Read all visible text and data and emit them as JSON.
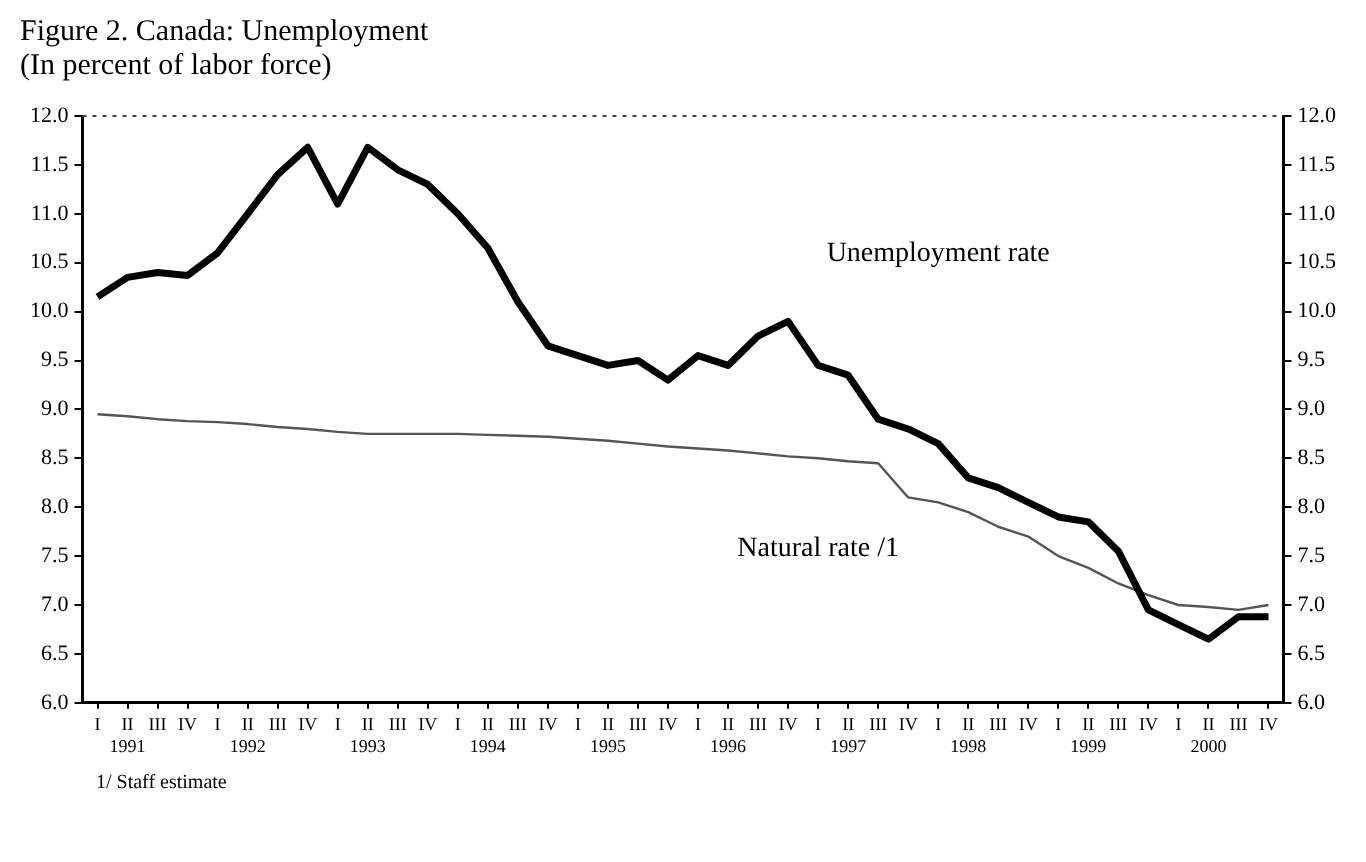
{
  "chart_data": {
    "type": "line",
    "title": "Figure 2. Canada: Unemployment",
    "subtitle": "(In percent of labor force)",
    "categories": [
      "I",
      "II\n1991",
      "III",
      "IV",
      "I",
      "II\n1992",
      "III",
      "IV",
      "I",
      "II\n1993",
      "III",
      "IV",
      "I",
      "II\n1994",
      "III",
      "IV",
      "I",
      "II\n1995",
      "III",
      "IV",
      "I",
      "II\n1996",
      "III",
      "IV",
      "I",
      "II\n1997",
      "III",
      "IV",
      "I",
      "II\n1998",
      "III",
      "IV",
      "I",
      "II\n1999",
      "III",
      "IV",
      "I",
      "II\n2000",
      "III",
      "IV"
    ],
    "series": [
      {
        "name": "Unemployment rate",
        "color": "#000000",
        "values": [
          10.15,
          10.35,
          10.4,
          10.37,
          10.6,
          11.0,
          11.4,
          11.68,
          11.1,
          11.68,
          11.45,
          11.3,
          11.0,
          10.65,
          10.1,
          9.65,
          9.55,
          9.45,
          9.5,
          9.3,
          9.55,
          9.45,
          9.75,
          9.9,
          9.45,
          9.35,
          8.9,
          8.8,
          8.65,
          8.3,
          8.2,
          8.05,
          7.9,
          7.85,
          7.55,
          6.95,
          6.8,
          6.65,
          6.88,
          6.88
        ]
      },
      {
        "name": "Natural rate /1",
        "color": "#555555",
        "values": [
          8.95,
          8.93,
          8.9,
          8.88,
          8.87,
          8.85,
          8.82,
          8.8,
          8.77,
          8.75,
          8.75,
          8.75,
          8.75,
          8.74,
          8.73,
          8.72,
          8.7,
          8.68,
          8.65,
          8.62,
          8.6,
          8.58,
          8.55,
          8.52,
          8.5,
          8.47,
          8.45,
          8.1,
          8.05,
          7.95,
          7.8,
          7.7,
          7.5,
          7.38,
          7.22,
          7.1,
          7.0,
          6.98,
          6.95,
          7.0
        ]
      }
    ],
    "ylim": [
      6,
      12
    ],
    "yticks": [
      {
        "value": 6,
        "label": "6.0"
      },
      {
        "value": 6.5,
        "label": "6.5"
      },
      {
        "value": 7,
        "label": "7.0"
      },
      {
        "value": 7.5,
        "label": "7.5"
      },
      {
        "value": 8,
        "label": "8.0"
      },
      {
        "value": 8.5,
        "label": "8.5"
      },
      {
        "value": 9,
        "label": "9.0"
      },
      {
        "value": 9.5,
        "label": "9.5"
      },
      {
        "value": 10,
        "label": "10.0"
      },
      {
        "value": 10.5,
        "label": "10.5"
      },
      {
        "value": 11,
        "label": "11.0"
      },
      {
        "value": 11.5,
        "label": "11.5"
      },
      {
        "value": 12,
        "label": "12.0"
      }
    ],
    "y2lim": [
      6,
      12
    ],
    "y2ticks": [
      {
        "value": 6,
        "label": "6.0"
      },
      {
        "value": 6.5,
        "label": "6.5"
      },
      {
        "value": 7,
        "label": "7.0"
      },
      {
        "value": 7.5,
        "label": "7.5"
      },
      {
        "value": 8,
        "label": "8.0"
      },
      {
        "value": 8.5,
        "label": "8.5"
      },
      {
        "value": 9,
        "label": "9.0"
      },
      {
        "value": 9.5,
        "label": "9.5"
      },
      {
        "value": 10,
        "label": "10.0"
      },
      {
        "value": 10.5,
        "label": "10.5"
      },
      {
        "value": 11,
        "label": "11.0"
      },
      {
        "value": 11.5,
        "label": "11.5"
      },
      {
        "value": 12,
        "label": "12.0"
      }
    ],
    "annotations": [
      "1/ Staff estimate"
    ],
    "legend": false,
    "grid": false,
    "marker": "none",
    "line_style": "solid"
  }
}
